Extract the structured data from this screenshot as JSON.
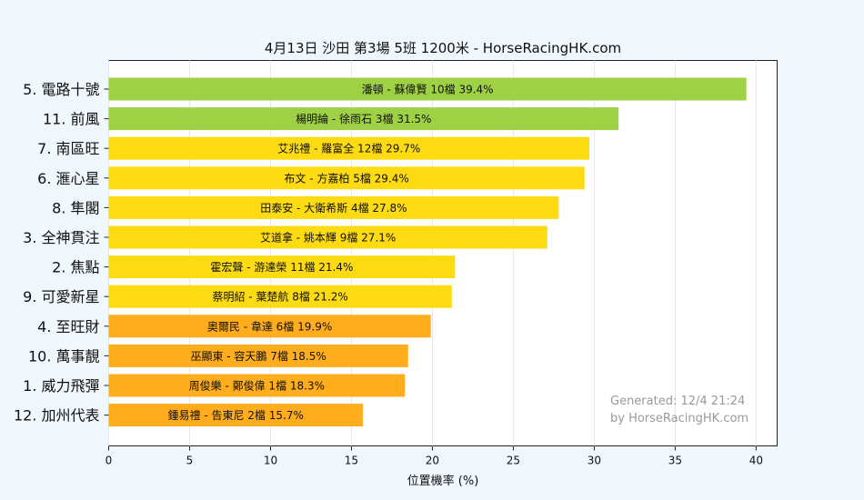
{
  "chart_data": {
    "type": "bar",
    "orientation": "horizontal",
    "title": "4月13日  沙田  第3場  5班  1200米 - HorseRacingHK.com",
    "xlabel": "位置機率 (%)",
    "ylabel": "",
    "xlim": [
      0,
      41.3
    ],
    "xticks": [
      "0",
      "5",
      "10",
      "15",
      "20",
      "25",
      "30",
      "35",
      "40"
    ],
    "grid": "x",
    "categories": [
      "5. 電路十號",
      "11. 前風",
      "7. 南區旺",
      "6. 滙心星",
      "8. 隼閣",
      "3. 全神貫注",
      "2. 焦點",
      "9. 可愛新星",
      "4. 至旺財",
      "10. 萬事靚",
      "1. 威力飛彈",
      "12. 加州代表"
    ],
    "values": [
      39.4,
      31.5,
      29.7,
      29.4,
      27.8,
      27.1,
      21.4,
      21.2,
      19.9,
      18.5,
      18.3,
      15.7
    ],
    "bar_labels": [
      "潘頓 - 蘇偉賢 10檔  39.4%",
      "楊明綸 - 徐雨石 3檔  31.5%",
      "艾兆禮 - 羅富全 12檔  29.7%",
      "布文 - 方嘉柏 5檔  29.4%",
      "田泰安 - 大衛希斯 4檔  27.8%",
      "艾道拿 - 姚本輝 9檔  27.1%",
      "霍宏聲 - 游達榮 11檔  21.4%",
      "蔡明紹 - 葉楚航 8檔  21.2%",
      "奧爾民 - 韋達 6檔  19.9%",
      "巫顯東 - 容天鵬 7檔  18.5%",
      "周俊樂 - 鄭俊偉 1檔  18.3%",
      "鍾易禮 - 告東尼 2檔  15.7%"
    ],
    "bar_colors": [
      "#9fd144",
      "#9fd144",
      "#fddb12",
      "#fddb12",
      "#fddb12",
      "#fddb12",
      "#fddb12",
      "#fddb12",
      "#ffad1c",
      "#ffad1c",
      "#ffad1c",
      "#ffad1c"
    ],
    "watermark": [
      "Generated: 12/4 21:24",
      "by HorseRacingHK.com"
    ]
  }
}
